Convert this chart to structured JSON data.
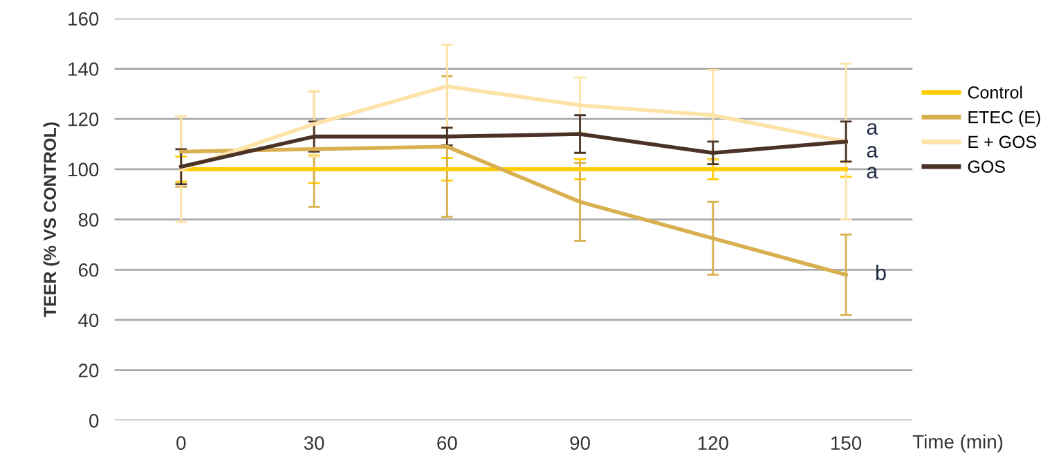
{
  "chart_data": {
    "type": "line",
    "xlabel": "Time (min)",
    "ylabel": "TEER (% VS CONTROL)",
    "x": [
      0,
      30,
      60,
      90,
      120,
      150
    ],
    "xlim": [
      -15,
      165
    ],
    "xticks": [
      0,
      30,
      60,
      90,
      120,
      150
    ],
    "ylim": [
      0,
      160
    ],
    "yticks": [
      0,
      20,
      40,
      60,
      80,
      100,
      120,
      140,
      160
    ],
    "grid": "y",
    "legend": "right",
    "marker": "none",
    "line_style": "solid",
    "series": [
      {
        "name": "Control",
        "color": "#ffcc00",
        "values": [
          100,
          100,
          100,
          100,
          100,
          100
        ],
        "errors": [
          5,
          5.5,
          4.5,
          4,
          4,
          3
        ]
      },
      {
        "name": "ETEC (E)",
        "color": "#d9b050",
        "values": [
          107,
          108,
          109,
          87,
          72.5,
          58
        ],
        "errors": [
          14,
          23,
          28,
          15.5,
          14.5,
          16
        ]
      },
      {
        "name": "E + GOS",
        "color": "#fde3a7",
        "values": [
          100,
          118,
          133,
          125.5,
          121.5,
          111
        ],
        "errors": [
          21,
          13,
          16.5,
          11,
          18,
          31
        ]
      },
      {
        "name": "GOS",
        "color": "#4a3226",
        "values": [
          101,
          113,
          113,
          114,
          106.5,
          111
        ],
        "errors": [
          7,
          6,
          3.5,
          7.5,
          4.5,
          8
        ]
      }
    ],
    "annotations": [
      "a",
      "a",
      "a",
      "b"
    ]
  }
}
